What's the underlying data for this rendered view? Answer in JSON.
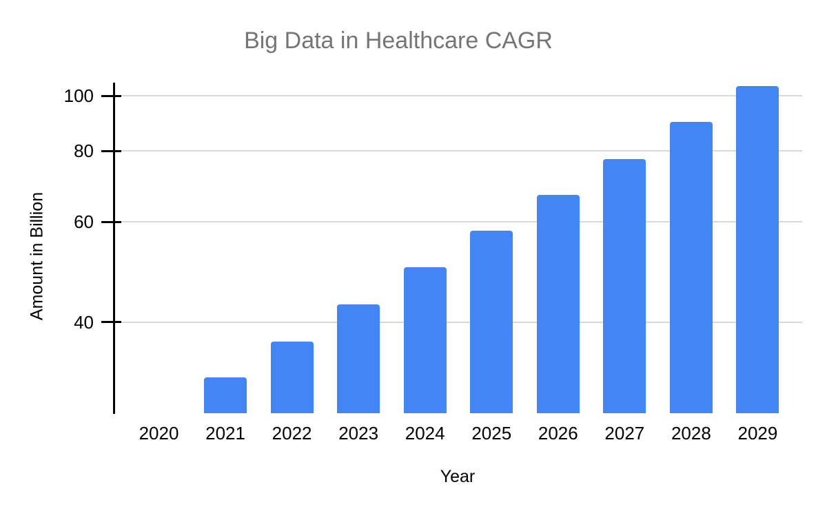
{
  "page": {
    "background": "#ffffff"
  },
  "chart_data": {
    "type": "bar",
    "title": "Big Data in Healthcare CAGR",
    "xlabel": "Year",
    "ylabel": "Amount in Billion",
    "categories": [
      "2020",
      "2021",
      "2022",
      "2023",
      "2024",
      "2025",
      "2026",
      "2027",
      "2028",
      "2029"
    ],
    "values": [
      null,
      32,
      37,
      43,
      50,
      58,
      67,
      77.5,
      90,
      104
    ],
    "series_note": "2020 shows no visible bar (value at the axis baseline)",
    "y_axis": {
      "scale": "log",
      "ticks": [
        100,
        80,
        60,
        40
      ],
      "baseline_value": 27.7,
      "max_visible_value": 104
    },
    "grid": "horizontal",
    "legend": "none",
    "colors": {
      "bar": "#4285f4",
      "gridline": "#d9d9d9",
      "axis": "#000000",
      "title_text": "#757575",
      "label_text": "#000000"
    }
  }
}
